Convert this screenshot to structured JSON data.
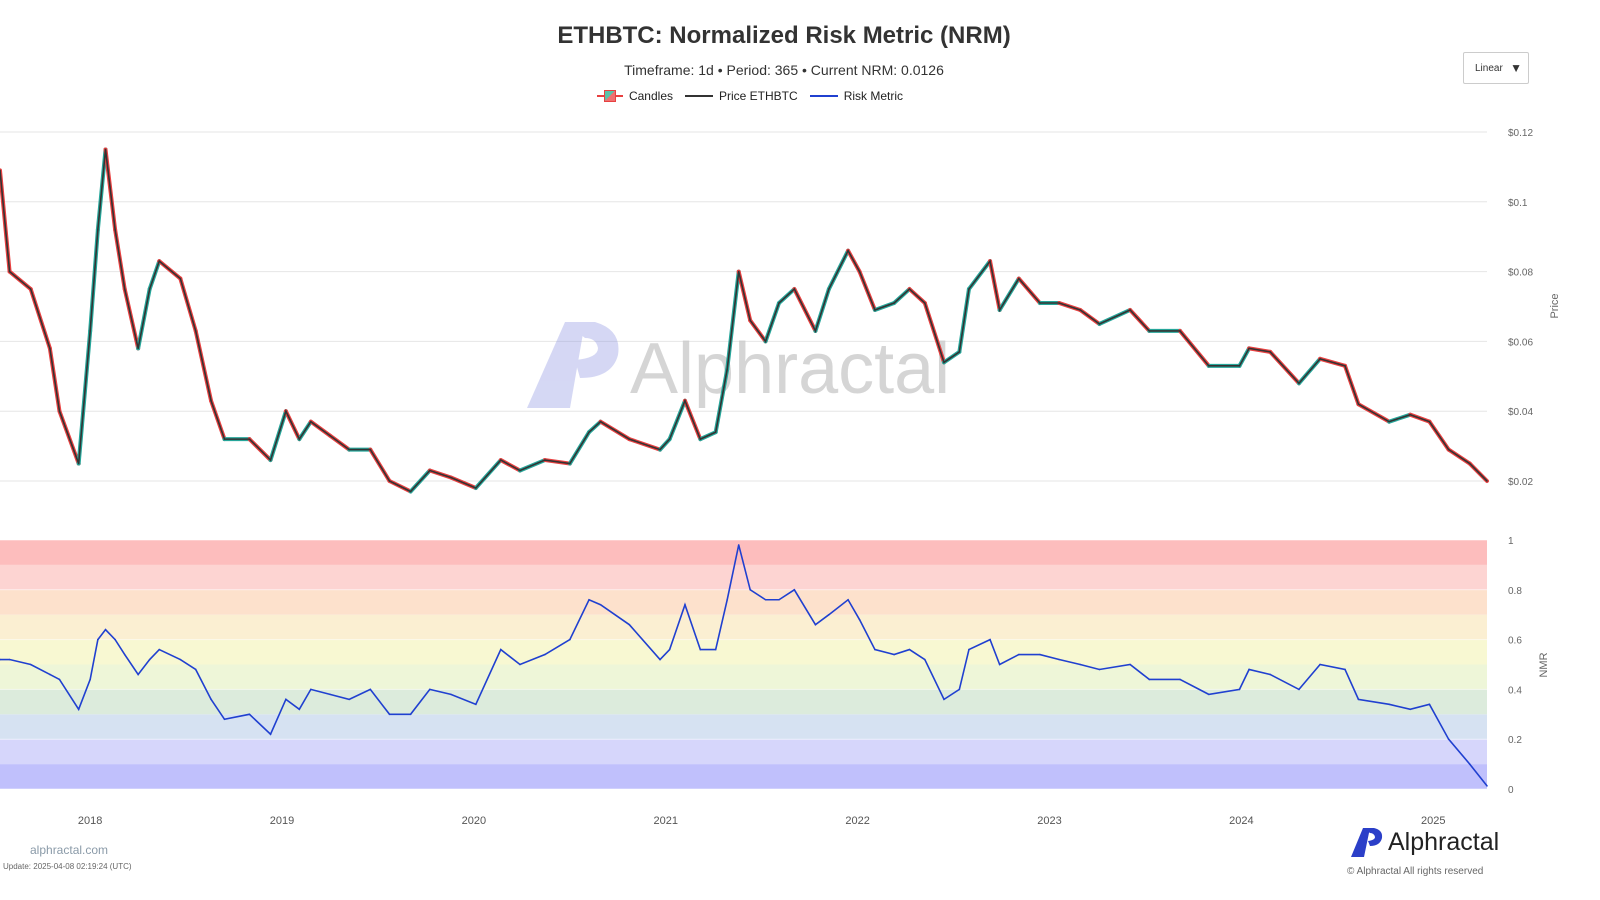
{
  "header": {
    "title": "ETHBTC: Normalized Risk Metric (NRM)",
    "subtitle": "Timeframe: 1d  •  Period: 365  •  Current NRM: 0.0126"
  },
  "legend": [
    {
      "label": "Candles",
      "color": "#e84040"
    },
    {
      "label": "Price ETHBTC",
      "color": "#333333"
    },
    {
      "label": "Risk Metric",
      "color": "#2040d0"
    }
  ],
  "scale_dropdown": {
    "value": "Linear",
    "icon": "caret-down-icon"
  },
  "footer": {
    "site": "alphractal.com",
    "update": "Update: 2025-04-08 02:19:24 (UTC)",
    "brand": "Alphractal",
    "copyright": "© Alphractal All rights reserved",
    "watermark": "Alphractal"
  },
  "chart_data": [
    {
      "type": "line",
      "title": "Price ETHBTC",
      "ylabel": "Price",
      "ylim": [
        0.02,
        0.12
      ],
      "yticks": [
        "$0.02",
        "$0.04",
        "$0.06",
        "$0.08",
        "$0.1",
        "$0.12"
      ],
      "ytick_values": [
        0.02,
        0.04,
        0.06,
        0.08,
        0.1,
        0.12
      ],
      "x": [
        2017.53,
        2017.58,
        2017.69,
        2017.79,
        2017.84,
        2017.94,
        2018.0,
        2018.04,
        2018.08,
        2018.13,
        2018.18,
        2018.25,
        2018.31,
        2018.36,
        2018.47,
        2018.55,
        2018.63,
        2018.7,
        2018.83,
        2018.94,
        2019.02,
        2019.09,
        2019.15,
        2019.25,
        2019.35,
        2019.46,
        2019.56,
        2019.67,
        2019.77,
        2019.88,
        2020.01,
        2020.14,
        2020.24,
        2020.37,
        2020.5,
        2020.6,
        2020.66,
        2020.81,
        2020.97,
        2021.02,
        2021.1,
        2021.18,
        2021.26,
        2021.32,
        2021.38,
        2021.44,
        2021.52,
        2021.59,
        2021.67,
        2021.78,
        2021.85,
        2021.95,
        2022.01,
        2022.09,
        2022.19,
        2022.27,
        2022.35,
        2022.45,
        2022.53,
        2022.58,
        2022.69,
        2022.74,
        2022.84,
        2022.95,
        2023.05,
        2023.16,
        2023.26,
        2023.42,
        2023.52,
        2023.68,
        2023.83,
        2023.99,
        2024.04,
        2024.15,
        2024.3,
        2024.41,
        2024.54,
        2024.61,
        2024.77,
        2024.88,
        2024.98,
        2025.08,
        2025.19,
        2025.28
      ],
      "values": [
        0.109,
        0.08,
        0.075,
        0.058,
        0.04,
        0.025,
        0.063,
        0.092,
        0.115,
        0.092,
        0.075,
        0.058,
        0.075,
        0.083,
        0.078,
        0.063,
        0.043,
        0.032,
        0.032,
        0.026,
        0.04,
        0.032,
        0.037,
        0.033,
        0.029,
        0.029,
        0.02,
        0.017,
        0.023,
        0.021,
        0.018,
        0.026,
        0.023,
        0.026,
        0.025,
        0.034,
        0.037,
        0.032,
        0.029,
        0.032,
        0.043,
        0.032,
        0.034,
        0.052,
        0.08,
        0.066,
        0.06,
        0.071,
        0.075,
        0.063,
        0.075,
        0.086,
        0.08,
        0.069,
        0.071,
        0.075,
        0.071,
        0.054,
        0.057,
        0.075,
        0.083,
        0.069,
        0.078,
        0.071,
        0.071,
        0.069,
        0.065,
        0.069,
        0.063,
        0.063,
        0.053,
        0.053,
        0.058,
        0.057,
        0.048,
        0.055,
        0.053,
        0.042,
        0.037,
        0.039,
        0.037,
        0.029,
        0.025,
        0.02
      ]
    },
    {
      "type": "line",
      "title": "Risk Metric",
      "ylabel": "NMR",
      "ylim": [
        0,
        1
      ],
      "yticks": [
        "0",
        "0.2",
        "0.4",
        "0.6",
        "0.8",
        "1"
      ],
      "ytick_values": [
        0,
        0.2,
        0.4,
        0.6,
        0.8,
        1
      ],
      "xticks": [
        "2018",
        "2019",
        "2020",
        "2021",
        "2022",
        "2023",
        "2024",
        "2025"
      ],
      "xtick_values": [
        2018,
        2019,
        2020,
        2021,
        2022,
        2023,
        2024,
        2025
      ],
      "xlim": [
        2017.53,
        2025.28
      ],
      "bands": [
        0,
        0.1,
        0.2,
        0.3,
        0.4,
        0.5,
        0.6,
        0.7,
        0.8,
        0.9,
        1
      ],
      "band_colors": [
        "#c0c0fc",
        "#d6d6fb",
        "#d6e2f2",
        "#dcebdc",
        "#eef6d8",
        "#f8f8d2",
        "#fbefd2",
        "#fde1cc",
        "#fdd4d2",
        "#fdbdbd"
      ],
      "values": [
        0.52,
        0.52,
        0.5,
        0.46,
        0.44,
        0.32,
        0.44,
        0.6,
        0.64,
        0.6,
        0.54,
        0.46,
        0.52,
        0.56,
        0.52,
        0.48,
        0.36,
        0.28,
        0.3,
        0.22,
        0.36,
        0.32,
        0.4,
        0.38,
        0.36,
        0.4,
        0.3,
        0.3,
        0.4,
        0.38,
        0.34,
        0.56,
        0.5,
        0.54,
        0.6,
        0.76,
        0.74,
        0.66,
        0.52,
        0.56,
        0.74,
        0.56,
        0.56,
        0.76,
        0.98,
        0.8,
        0.76,
        0.76,
        0.8,
        0.66,
        0.7,
        0.76,
        0.68,
        0.56,
        0.54,
        0.56,
        0.52,
        0.36,
        0.4,
        0.56,
        0.6,
        0.5,
        0.54,
        0.54,
        0.52,
        0.5,
        0.48,
        0.5,
        0.44,
        0.44,
        0.38,
        0.4,
        0.48,
        0.46,
        0.4,
        0.5,
        0.48,
        0.36,
        0.34,
        0.32,
        0.34,
        0.2,
        0.1,
        0.0126
      ]
    }
  ]
}
